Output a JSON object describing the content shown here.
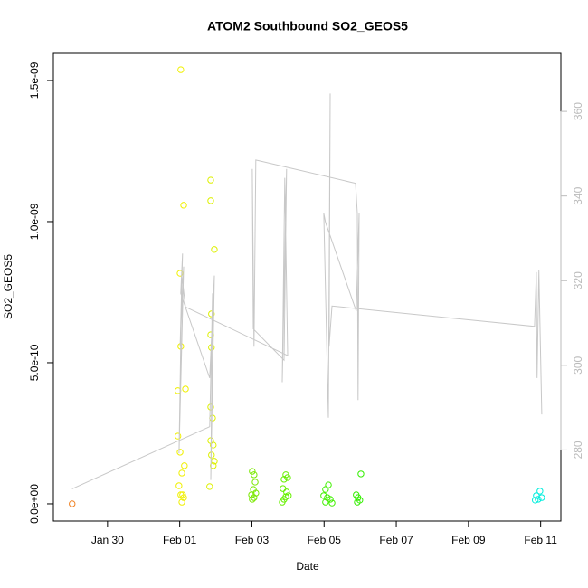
{
  "chart_data": {
    "type": "scatter",
    "title": "ATOM2 Southbound SO2_GEOS5",
    "xlabel": "Date",
    "ylabel": "SO2_GEOS5",
    "xlim": [
      28.5,
      42.56
    ],
    "xticks": [
      {
        "value": 30,
        "label": "Jan 30"
      },
      {
        "value": 32,
        "label": "Feb 01"
      },
      {
        "value": 34,
        "label": "Feb 03"
      },
      {
        "value": 36,
        "label": "Feb 05"
      },
      {
        "value": 38,
        "label": "Feb 07"
      },
      {
        "value": 40,
        "label": "Feb 09"
      },
      {
        "value": 42,
        "label": "Feb 11"
      }
    ],
    "ylim": [
      -6.1e-11,
      1.596e-09
    ],
    "yticks": [
      {
        "value": 0,
        "label": "0.0e+00"
      },
      {
        "value": 5e-10,
        "label": "5.0e-10"
      },
      {
        "value": 1e-09,
        "label": "1.0e-09"
      },
      {
        "value": 1.5e-09,
        "label": "1.5e-09"
      }
    ],
    "y2lim": [
      263.2,
      373.7
    ],
    "y2ticks": [
      280,
      300,
      320,
      340,
      360
    ],
    "y2color": "#bbbbbb",
    "series": [
      {
        "color": "#f08020",
        "x": [
          29.02
        ],
        "values": [
          0
        ]
      },
      {
        "color": "#f0f000",
        "x": [
          32.03,
          32.11,
          32.01,
          32.03,
          31.95,
          32.16,
          31.95,
          32.01,
          32.13,
          32.06,
          31.98,
          32.03,
          32.08,
          32.06,
          32.11
        ],
        "values": [
          1.538e-09,
          1.058e-09,
          8.17e-10,
          5.58e-10,
          4.01e-10,
          4.07e-10,
          2.4e-10,
          1.83e-10,
          1.35e-10,
          1.09e-10,
          6.4e-11,
          3.2e-11,
          3.2e-11,
          6e-12,
          2.2e-11
        ]
      },
      {
        "color": "#ddf000",
        "x": [
          32.86,
          32.86,
          32.96,
          32.88,
          32.86,
          32.88,
          32.86,
          32.91,
          32.86,
          32.93,
          32.88,
          32.96,
          32.83,
          32.93
        ],
        "values": [
          1.147e-09,
          1.074e-09,
          9.01e-10,
          6.73e-10,
          5.99e-10,
          5.54e-10,
          3.43e-10,
          3.04e-10,
          2.24e-10,
          2.08e-10,
          1.73e-10,
          1.51e-10,
          6.1e-11,
          1.35e-10
        ]
      },
      {
        "color": "#7ae800",
        "x": [
          34.01,
          34.06,
          34.09,
          34.04,
          33.99,
          34.06,
          34.01,
          34.11
        ],
        "values": [
          1.15e-10,
          1.03e-10,
          7.7e-11,
          5.1e-11,
          3.2e-11,
          2.2e-11,
          1.6e-11,
          3.8e-11
        ]
      },
      {
        "color": "#66f000",
        "x": [
          34.94,
          34.89,
          34.99,
          34.86,
          34.96,
          35.01,
          34.89,
          34.84,
          34.94
        ],
        "values": [
          1.03e-10,
          8.7e-11,
          9.3e-11,
          5.4e-11,
          4.2e-11,
          2.9e-11,
          1.6e-11,
          6e-12,
          2.5e-11
        ]
      },
      {
        "color": "#40f000",
        "x": [
          36.12,
          36.04,
          35.99,
          36.09,
          36.17,
          36.04,
          36.22
        ],
        "values": [
          6.7e-11,
          5.1e-11,
          2.9e-11,
          2.2e-11,
          1.6e-11,
          6e-12,
          3e-12
        ]
      },
      {
        "color": "#33ee00",
        "x": [
          37.02,
          36.89,
          36.94,
          36.99,
          36.92
        ],
        "values": [
          1.06e-10,
          3.2e-11,
          2.2e-11,
          1.3e-11,
          6e-12
        ]
      },
      {
        "color": "#00eedd",
        "x": [
          41.98,
          41.88,
          42.03,
          41.93,
          41.85
        ],
        "values": [
          4.5e-11,
          2.9e-11,
          2.2e-11,
          1.6e-11,
          1.3e-11
        ]
      },
      {
        "type": "line",
        "axis": "y2",
        "color": "#c8c8c8",
        "x": [
          29.02,
          32.83,
          32.91,
          32.86,
          32.96,
          32.83,
          32.03,
          32.08,
          32.01,
          32.11,
          31.98,
          32.06,
          32.16,
          34.99,
          34.91,
          34.84,
          34.96,
          34.89,
          34.04,
          34.01,
          34.06,
          34.11,
          36.87,
          36.92,
          36.94,
          36.97,
          36.89,
          36.04,
          35.99,
          36.12,
          36.17,
          36.14,
          36.22,
          41.83,
          41.88,
          41.9,
          41.95,
          42.03
        ],
        "values": [
          270.8,
          285.5,
          317.0,
          272.9,
          321.2,
          297.0,
          317.0,
          326.4,
          304.4,
          323.3,
          279.2,
          321.2,
          313.8,
          302.3,
          344.3,
          296.0,
          346.4,
          301.2,
          308.6,
          346.4,
          304.4,
          348.5,
          343.0,
          335.9,
          291.8,
          335.9,
          312.8,
          333.8,
          335.9,
          287.6,
          364.2,
          304.4,
          314.0,
          309.2,
          322.0,
          297.0,
          322.4,
          288.4
        ]
      }
    ]
  }
}
